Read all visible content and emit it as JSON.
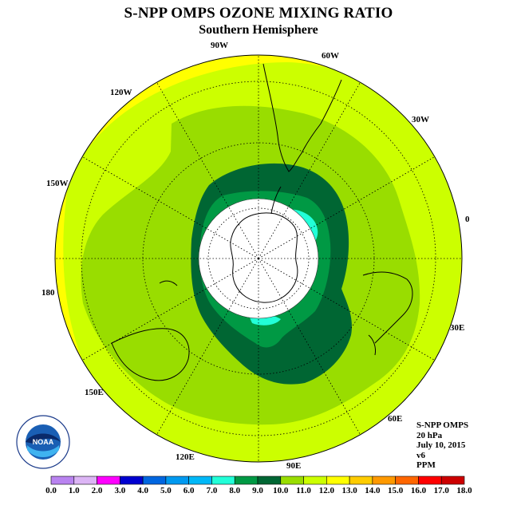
{
  "header": {
    "title": "S-NPP OMPS OZONE MIXING RATIO",
    "subtitle": "Southern Hemisphere"
  },
  "map": {
    "projection": "south polar stereographic",
    "longitude_labels": [
      "90W",
      "60W",
      "30W",
      "0",
      "30E",
      "60E",
      "90E",
      "120E",
      "150E",
      "180",
      "150W",
      "120W"
    ],
    "zones_ppm": [
      {
        "range": "11.0-12.0",
        "location": "outer ring, most of hemisphere"
      },
      {
        "range": "10.0-11.0",
        "location": "middle latitudes band"
      },
      {
        "range": "9.0-10.0",
        "location": "ring around polar vortex"
      },
      {
        "range": "8.0-9.0",
        "location": "inner vortex ring"
      },
      {
        "range": "7.0-8.0",
        "location": "small patches near polar cap"
      },
      {
        "range": "12.0-13.0",
        "location": "equatorward edge"
      }
    ]
  },
  "info": {
    "lines": [
      "S-NPP OMPS",
      "20 hPa",
      "July 10, 2015",
      "v6",
      "PPM"
    ]
  },
  "logo": {
    "text": "NOAA",
    "ring_text": "NATIONAL OCEANIC AND ATMOSPHERIC ADMINISTRATION · U.S. DEPARTMENT OF COMMERCE",
    "icon": "noaa-logo"
  },
  "colorbar": {
    "unit": "PPM",
    "ticks": [
      "0.0",
      "1.0",
      "2.0",
      "3.0",
      "4.0",
      "5.0",
      "6.0",
      "7.0",
      "8.0",
      "9.0",
      "10.0",
      "11.0",
      "12.0",
      "13.0",
      "14.0",
      "15.0",
      "16.0",
      "17.0",
      "18.0"
    ],
    "colors": [
      "#b983f0",
      "#dcb5f5",
      "#ff00ff",
      "#0000d0",
      "#0066e0",
      "#0099f0",
      "#00b8f8",
      "#22ffd8",
      "#009944",
      "#006633",
      "#99dd00",
      "#ccff00",
      "#ffff00",
      "#ffcc00",
      "#ff9900",
      "#ff6600",
      "#ff0000",
      "#cc0000",
      "#8b5a3c"
    ]
  },
  "colors": {
    "zone_12_13": "#ffff00",
    "zone_11_12": "#ccff00",
    "zone_10_11": "#99dd00",
    "zone_9_10": "#006633",
    "zone_8_9": "#009944",
    "zone_7_8": "#22ffd8"
  }
}
